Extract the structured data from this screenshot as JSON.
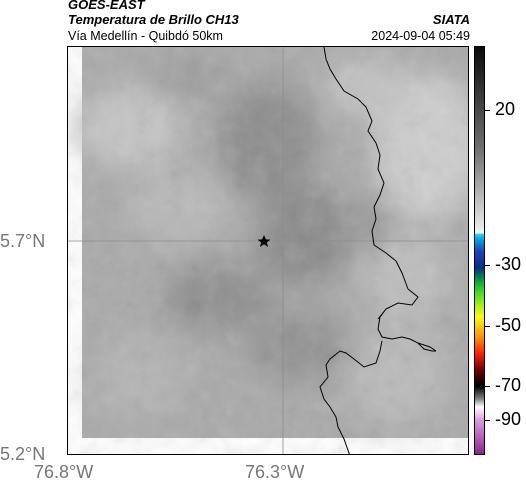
{
  "header": {
    "satellite": "GOES-EAST",
    "product": "Temperatura de Brillo CH13",
    "subtitle": "Vía Medellín - Quibdó 50km",
    "organization": "SIATA",
    "timestamp": "2024-09-04 05:49"
  },
  "axes": {
    "lat_labels": [
      "5.7°N",
      "5.2°N"
    ],
    "lon_labels": [
      "76.8°W",
      "76.3°W"
    ]
  },
  "colorbar": {
    "ticks": [
      "20",
      "-30",
      "-50",
      "-70",
      "-90"
    ]
  },
  "map": {
    "marker_icon": "star-icon",
    "colors": {
      "border": "#000000",
      "gridline": "#8c8c8c"
    }
  }
}
